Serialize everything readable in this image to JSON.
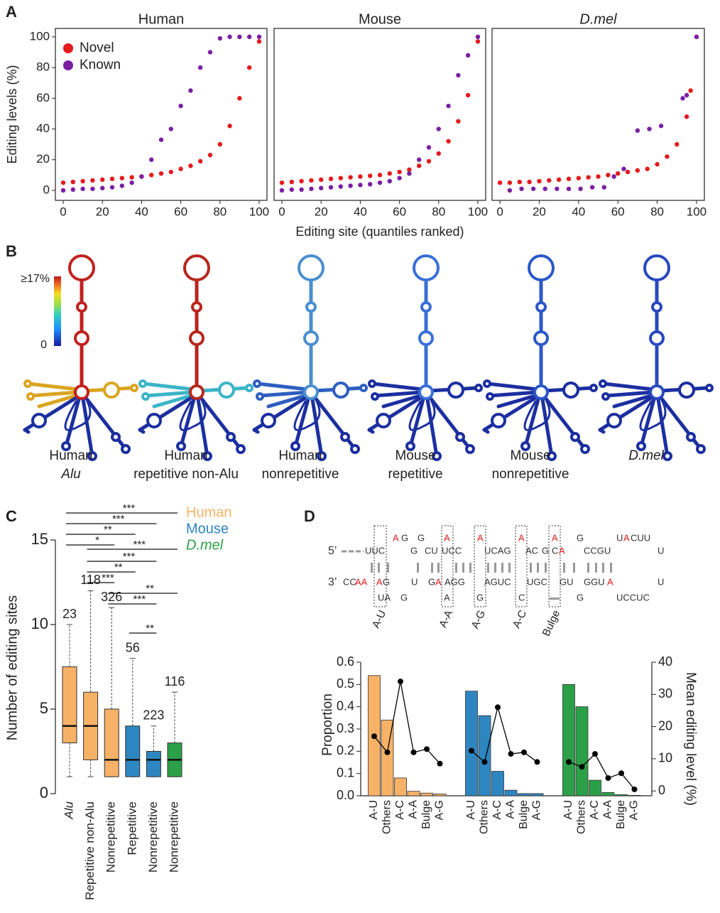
{
  "panel_labels": [
    "A",
    "B",
    "C",
    "D"
  ],
  "chart_data": [
    {
      "type": "scatter",
      "title": "Human",
      "xlabel": "Editing site (quantiles ranked)",
      "ylabel": "Editing levels (%)",
      "xlim": [
        -4,
        104
      ],
      "ylim": [
        -6.5,
        105.5
      ],
      "xticks": [
        0,
        20,
        40,
        60,
        80,
        100
      ],
      "yticks": [
        0,
        20,
        40,
        60,
        80,
        100
      ],
      "legend": "upper left",
      "series": [
        {
          "name": "Novel",
          "color": "#e41a1c",
          "x": [
            0,
            5,
            10,
            15,
            20,
            25,
            30,
            35,
            40,
            45,
            50,
            55,
            60,
            65,
            70,
            75,
            80,
            85,
            90,
            95,
            100
          ],
          "values": [
            5,
            5.5,
            6,
            6.5,
            7,
            7.5,
            8,
            8.5,
            9,
            10,
            11,
            12,
            14,
            16,
            19,
            23,
            30,
            42,
            60,
            80,
            97
          ]
        },
        {
          "name": "Known",
          "color": "#7b1fa2",
          "x": [
            0,
            5,
            10,
            15,
            20,
            25,
            30,
            35,
            40,
            45,
            50,
            55,
            60,
            65,
            70,
            75,
            80,
            85,
            90,
            95,
            100
          ],
          "values": [
            0,
            0.5,
            1,
            1,
            1.5,
            2,
            3,
            5,
            9,
            20,
            33,
            40,
            55,
            65,
            80,
            90,
            99,
            100,
            100,
            100,
            100
          ]
        }
      ]
    },
    {
      "type": "scatter",
      "title": "Mouse",
      "xlim": [
        -4,
        104
      ],
      "ylim": [
        -6.5,
        105.5
      ],
      "xticks": [
        0,
        20,
        40,
        60,
        80,
        100
      ],
      "series": [
        {
          "color": "#e41a1c",
          "x": [
            0,
            5,
            10,
            15,
            20,
            25,
            30,
            35,
            40,
            45,
            50,
            55,
            60,
            65,
            70,
            75,
            80,
            85,
            90,
            95,
            100
          ],
          "values": [
            5,
            5.5,
            6,
            6.5,
            7,
            7.5,
            8,
            8.5,
            9,
            9.5,
            10,
            11,
            12,
            13.5,
            16,
            19,
            24,
            32,
            45,
            62,
            97
          ]
        },
        {
          "color": "#7b1fa2",
          "x": [
            0,
            5,
            10,
            15,
            20,
            25,
            30,
            35,
            40,
            45,
            50,
            55,
            60,
            65,
            70,
            75,
            80,
            85,
            90,
            95,
            100
          ],
          "values": [
            0,
            0.5,
            0.5,
            1,
            1.5,
            2,
            2.5,
            3,
            3.5,
            4,
            5,
            6,
            8,
            11,
            20,
            28,
            40,
            55,
            75,
            88,
            100
          ]
        }
      ]
    },
    {
      "type": "scatter",
      "title": "D.mel",
      "xlim": [
        -4,
        104
      ],
      "ylim": [
        -6.5,
        105.5
      ],
      "xticks": [
        0,
        20,
        40,
        60,
        80,
        100
      ],
      "series": [
        {
          "color": "#e41a1c",
          "x": [
            0,
            5,
            10,
            15,
            20,
            25,
            30,
            35,
            40,
            45,
            50,
            55,
            60,
            65,
            70,
            75,
            80,
            85,
            90,
            95,
            97,
            100
          ],
          "values": [
            5,
            5,
            5.5,
            5.5,
            6,
            6.5,
            7,
            7.5,
            8,
            8.5,
            9,
            10,
            11,
            12,
            13,
            14,
            17,
            22,
            30,
            48,
            65,
            100
          ]
        },
        {
          "color": "#7b1fa2",
          "x": [
            5,
            11,
            17,
            23,
            29,
            35,
            41,
            47,
            53,
            58,
            63,
            70,
            76,
            82,
            93,
            95,
            100
          ],
          "values": [
            0,
            1,
            1,
            1,
            1,
            1,
            1,
            2,
            2,
            9,
            14,
            39,
            40,
            42,
            60,
            62,
            100
          ]
        }
      ]
    },
    {
      "type": "box",
      "ylabel": "Number of editing sites",
      "ylim": [
        0,
        15
      ],
      "yticks": [
        0,
        5,
        10,
        15
      ],
      "categories": [
        "Alu",
        "Repetitive non-Alu",
        "Nonrepetitive",
        "Repetitive",
        "Nonrepetitive",
        "Nonrepetitive"
      ],
      "legend": [
        {
          "name": "Human",
          "color": "#f7b267"
        },
        {
          "name": "Mouse",
          "color": "#2e86c1"
        },
        {
          "name": "D.mel",
          "color": "#2ca048"
        }
      ],
      "box_group": [
        0,
        0,
        0,
        1,
        1,
        2
      ],
      "boxes": [
        {
          "whislo": 1,
          "q1": 3,
          "med": 4,
          "q3": 7.5,
          "whishi": 10,
          "n": 23
        },
        {
          "whislo": 1,
          "q1": 2,
          "med": 4,
          "q3": 6,
          "whishi": 12,
          "n": 118
        },
        {
          "whislo": 1,
          "q1": 1,
          "med": 2,
          "q3": 5,
          "whishi": 11,
          "n": 326
        },
        {
          "whislo": 1,
          "q1": 1,
          "med": 2,
          "q3": 4,
          "whishi": 8,
          "n": 56
        },
        {
          "whislo": 1,
          "q1": 1,
          "med": 2,
          "q3": 2.5,
          "whishi": 4,
          "n": 223
        },
        {
          "whislo": 1,
          "q1": 1,
          "med": 2,
          "q3": 3,
          "whishi": 6,
          "n": 116
        }
      ],
      "comparisons": [
        {
          "pair": [
            0,
            5
          ],
          "label": "***"
        },
        {
          "pair": [
            0,
            4
          ],
          "label": "***"
        },
        {
          "pair": [
            0,
            3
          ],
          "label": "**"
        },
        {
          "pair": [
            0,
            2
          ],
          "label": "*"
        },
        {
          "pair": [
            1,
            5
          ],
          "label": "***"
        },
        {
          "pair": [
            1,
            4
          ],
          "label": "***"
        },
        {
          "pair": [
            1,
            3
          ],
          "label": "**"
        },
        {
          "pair": [
            1,
            2
          ],
          "label": "***"
        },
        {
          "pair": [
            2,
            5
          ],
          "label": "**"
        },
        {
          "pair": [
            2,
            4
          ],
          "label": "***"
        },
        {
          "pair": [
            3,
            4
          ],
          "label": "**"
        }
      ]
    },
    {
      "type": "bar_line",
      "ylabel": "Proportion",
      "y2label": "Mean editing level (%)",
      "ylim": [
        0,
        0.6
      ],
      "yticks": [
        {
          "value": 0,
          "label": "0.0"
        },
        0.1,
        0.2,
        0.3,
        0.4,
        0.5,
        0.6
      ],
      "y2lim": [
        -1.5,
        40
      ],
      "y2ticks": [
        0,
        10,
        20,
        30,
        40
      ],
      "categories": [
        "A-U",
        "Others",
        "A-C",
        "A-A",
        "Bulge",
        "A-G"
      ],
      "groups": [
        {
          "color": "#f7b267",
          "values": [
            0.54,
            0.34,
            0.08,
            0.02,
            0.012,
            0.008
          ],
          "levels": [
            17,
            12,
            34,
            12,
            13,
            8.5
          ]
        },
        {
          "color": "#2e86c1",
          "values": [
            0.47,
            0.36,
            0.11,
            0.025,
            0.01,
            0.01
          ],
          "levels": [
            12.5,
            9,
            26,
            11.5,
            12,
            9
          ]
        },
        {
          "color": "#2ca048",
          "values": [
            0.5,
            0.4,
            0.07,
            0.015,
            0.005,
            0.002
          ],
          "levels": [
            9,
            7.5,
            11.5,
            4,
            5.5,
            0.5
          ]
        }
      ],
      "line_color": "#000000"
    }
  ],
  "structures": {
    "colorbar_max": "≥17%",
    "colorbar_min": "0",
    "items": [
      {
        "line1": "Human",
        "line2": "Alu",
        "stem_color": "#c0211f",
        "arm_color": "#d9a521"
      },
      {
        "line1": "Human",
        "line2": "repetitive non-Alu",
        "stem_color": "#b8261c",
        "arm_color": "#3cb4c8"
      },
      {
        "line1": "Human",
        "line2": "nonrepetitive",
        "stem_color": "#4a8fd0",
        "arm_color": "#2e5fc0"
      },
      {
        "line1": "Mouse",
        "line2": "repetitive",
        "stem_color": "#3a6fd8",
        "arm_color": "#1c2fa0"
      },
      {
        "line1": "Mouse",
        "line2": "nonrepetitive",
        "stem_color": "#2b58c8",
        "arm_color": "#1c2fa0"
      },
      {
        "line1": "D.mel",
        "line2": "",
        "stem_color": "#2848c0",
        "arm_color": "#1c2fa0"
      }
    ]
  },
  "pairing_diagram": {
    "tokens": [
      "A",
      "G",
      "G",
      "A",
      "A",
      "A",
      "A",
      "G",
      "U",
      "A",
      "CUU",
      "5’",
      "UUC",
      "G",
      "CU",
      "UCC",
      "UCAG",
      "AC",
      "G",
      "C",
      "A",
      "CCGU",
      "U",
      "3’",
      "CC",
      "AA",
      "A",
      "G",
      "U",
      "G",
      "A",
      "AGG",
      "AGUC",
      "UGC",
      "GU",
      "GGU",
      "A",
      "U",
      "UA",
      "G",
      "A",
      "G",
      "C",
      "G",
      "UCCUC"
    ],
    "pair_labels": [
      "A-U",
      "A-A",
      "A-G",
      "A-C",
      "Bulge"
    ]
  }
}
